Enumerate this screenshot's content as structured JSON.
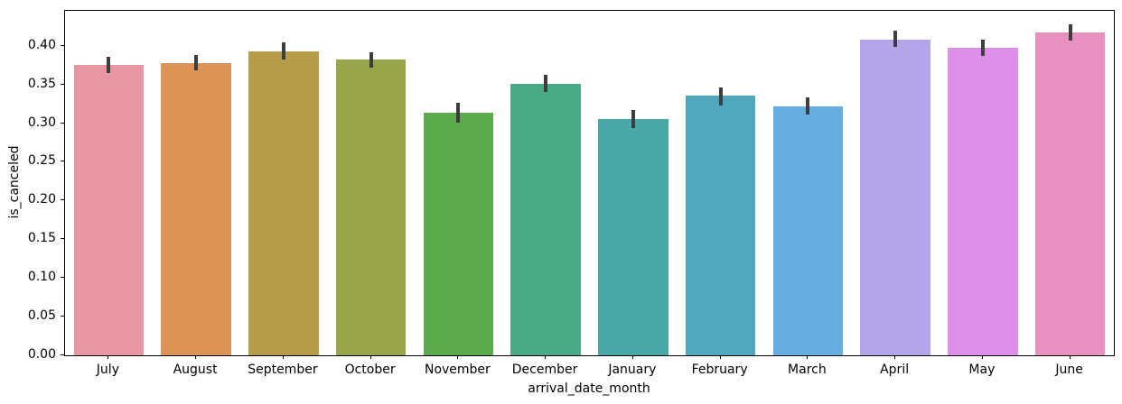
{
  "figure": {
    "background": "#ffffff",
    "spine_color": "#000000",
    "text_color": "#000000"
  },
  "chart_data": {
    "type": "bar",
    "title": "",
    "xlabel": "arrival_date_month",
    "ylabel": "is_canceled",
    "categories": [
      "July",
      "August",
      "September",
      "October",
      "November",
      "December",
      "January",
      "February",
      "March",
      "April",
      "May",
      "June"
    ],
    "values": [
      0.375,
      0.378,
      0.393,
      0.382,
      0.313,
      0.351,
      0.305,
      0.335,
      0.322,
      0.408,
      0.397,
      0.417
    ],
    "error_low": [
      0.364,
      0.368,
      0.382,
      0.372,
      0.3,
      0.34,
      0.293,
      0.323,
      0.311,
      0.398,
      0.387,
      0.406
    ],
    "error_high": [
      0.386,
      0.388,
      0.404,
      0.392,
      0.326,
      0.362,
      0.317,
      0.346,
      0.333,
      0.42,
      0.408,
      0.428
    ],
    "bar_colors": [
      "#e697a3",
      "#de9356",
      "#b79c4c",
      "#99a54a",
      "#5bab4d",
      "#4cab87",
      "#4aa9a8",
      "#51a8bc",
      "#68ade0",
      "#b4a5e8",
      "#dd90e8",
      "#e891c0"
    ],
    "error_color": "#3d3d3d",
    "yticks": [
      0.0,
      0.05,
      0.1,
      0.15,
      0.2,
      0.25,
      0.3,
      0.35,
      0.4
    ],
    "ytick_format_decimals": 2,
    "ylim": [
      0,
      0.445
    ],
    "bar_width_fraction": 0.8,
    "grid": false,
    "legend": null
  }
}
